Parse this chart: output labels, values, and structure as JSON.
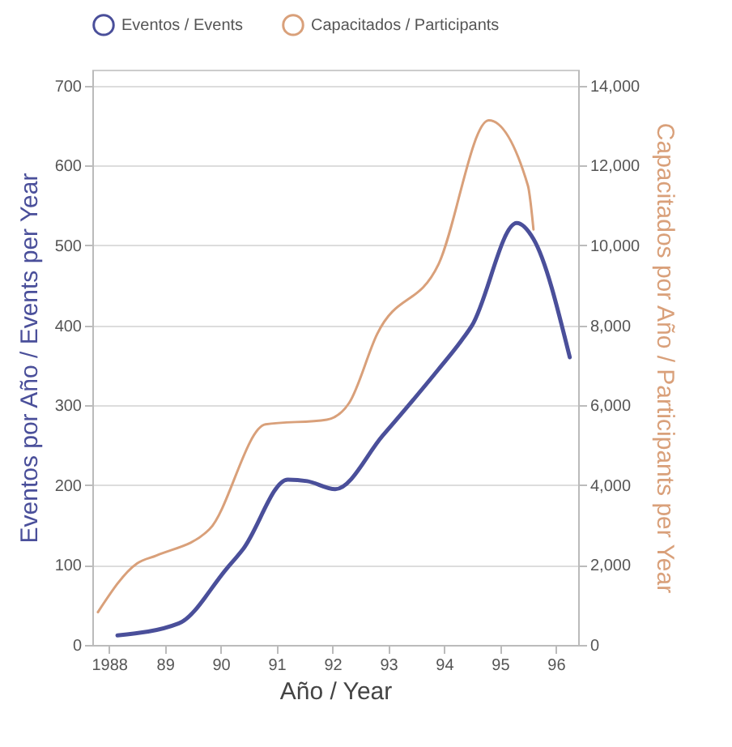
{
  "chart_data": {
    "type": "line",
    "xlabel": "Año / Year",
    "ylabel": "Eventos por Año / Events per Year",
    "y2label": "Capacitados por Año / Participants per Year",
    "xlim": [
      1987.7,
      1996.4
    ],
    "xticks": [
      {
        "value": 1988,
        "label": "1988"
      },
      {
        "value": 1989,
        "label": "89"
      },
      {
        "value": 1990,
        "label": "90"
      },
      {
        "value": 1991,
        "label": "91"
      },
      {
        "value": 1992,
        "label": "92"
      },
      {
        "value": 1993,
        "label": "93"
      },
      {
        "value": 1994,
        "label": "94"
      },
      {
        "value": 1995,
        "label": "95"
      },
      {
        "value": 1996,
        "label": "96"
      }
    ],
    "ylim": [
      0,
      720
    ],
    "yticks": [
      0,
      100,
      200,
      300,
      400,
      500,
      600,
      700
    ],
    "y2lim": [
      0,
      14400
    ],
    "y2ticks": [
      {
        "value": 0,
        "label": "0"
      },
      {
        "value": 2000,
        "label": "2,000"
      },
      {
        "value": 4000,
        "label": "4,000"
      },
      {
        "value": 6000,
        "label": "6,000"
      },
      {
        "value": 8000,
        "label": "8,000"
      },
      {
        "value": 10000,
        "label": "10,000"
      },
      {
        "value": 12000,
        "label": "12,000"
      },
      {
        "value": 14000,
        "label": "14,000"
      }
    ],
    "grid": "y",
    "legend": "top",
    "series": [
      {
        "name": "Eventos / Events",
        "color": "#4a4f9a",
        "x": [
          1988.15,
          1989.25,
          1990.1,
          1990.4,
          1991.2,
          1991.55,
          1992.05,
          1992.9,
          1993.9,
          1994.3,
          1994.5,
          1995.3,
          1995.6,
          1996.25
        ],
        "values": [
          12,
          27,
          95,
          120,
          207,
          205,
          195,
          262,
          345,
          380,
          400,
          528,
          508,
          360
        ]
      },
      {
        "name": "Capacitados / Participants",
        "color": "#d9a07a",
        "axis": "y2",
        "x": [
          1987.8,
          1988.5,
          1988.85,
          1989.8,
          1990.8,
          1991.9,
          1992.3,
          1992.8,
          1993.9,
          1994.8,
          1995.5,
          1995.6
        ],
        "values": [
          820,
          2040,
          2240,
          2900,
          5520,
          5640,
          6060,
          7780,
          9530,
          13130,
          11500,
          10400
        ]
      }
    ]
  }
}
